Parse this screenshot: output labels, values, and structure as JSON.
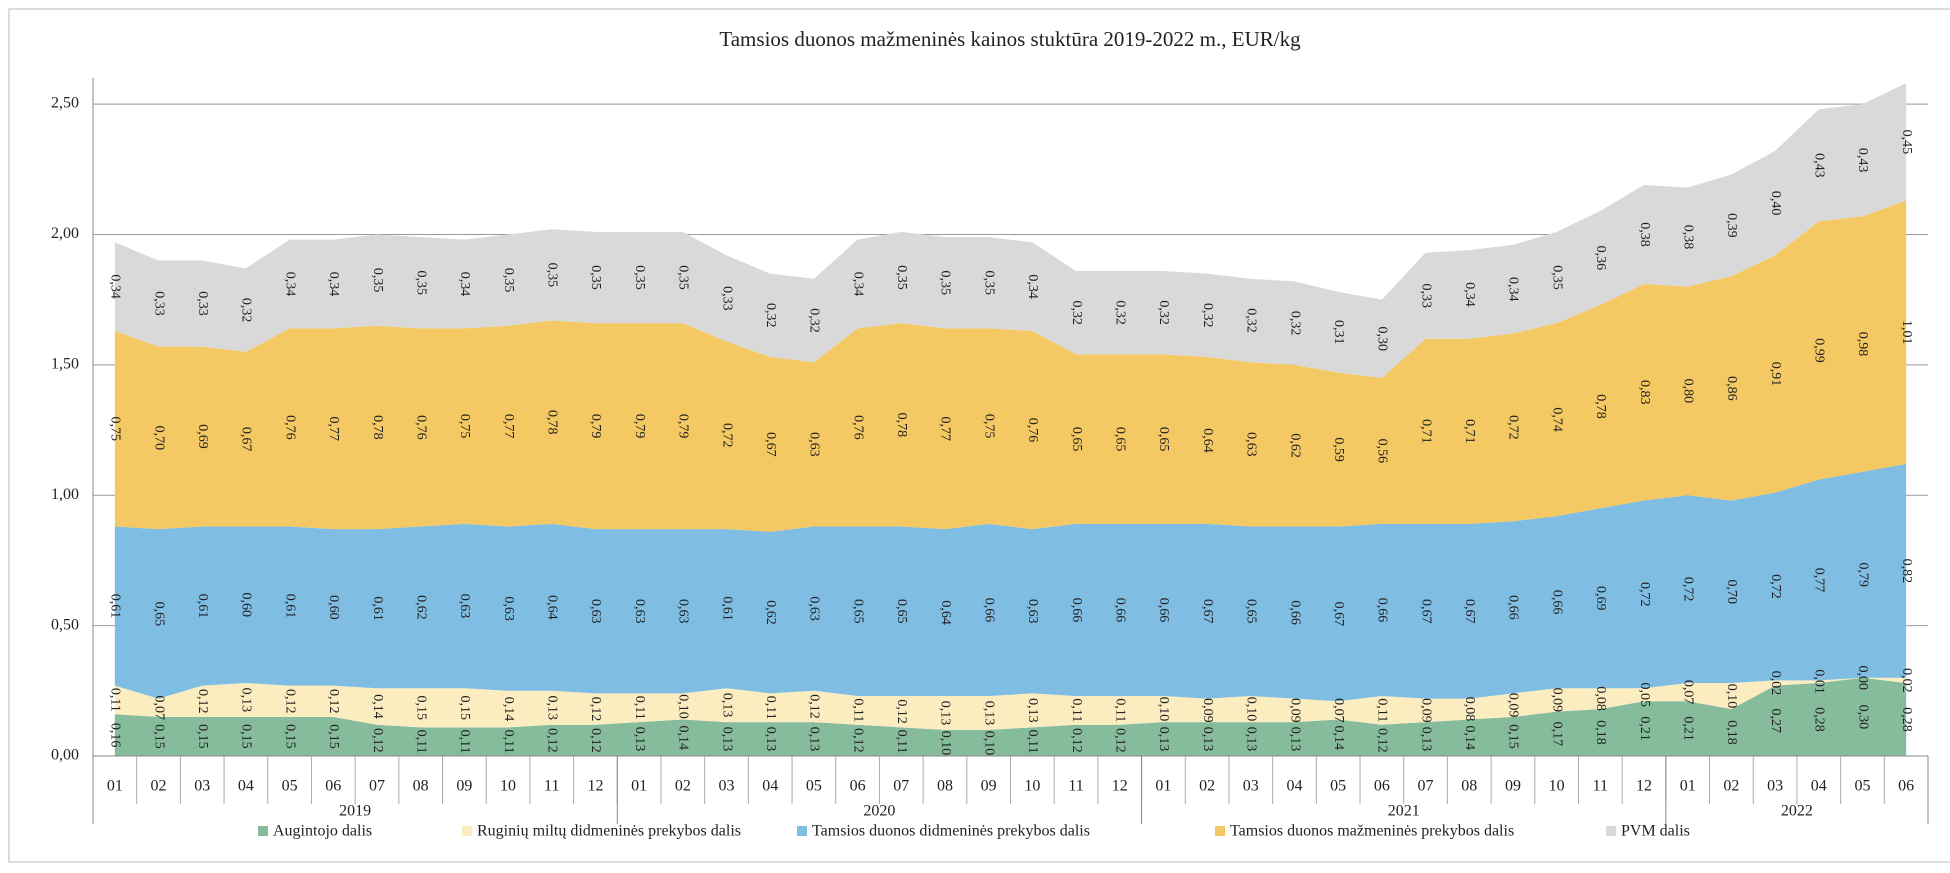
{
  "chart_data": {
    "type": "stacked_area",
    "title": "Tamsios duonos mažmeninės  kainos stuktūra  2019-2022 m., EUR/kg",
    "categories": [
      "01",
      "02",
      "03",
      "04",
      "05",
      "06",
      "07",
      "08",
      "09",
      "10",
      "11",
      "12",
      "01",
      "02",
      "03",
      "04",
      "05",
      "06",
      "07",
      "08",
      "09",
      "10",
      "11",
      "12",
      "01",
      "02",
      "03",
      "04",
      "05",
      "06",
      "07",
      "08",
      "09",
      "10",
      "11",
      "12",
      "01",
      "02",
      "03",
      "04",
      "05",
      "06"
    ],
    "x_groups": [
      {
        "label": "2019",
        "count": 12
      },
      {
        "label": "2020",
        "count": 12
      },
      {
        "label": "2021",
        "count": 12
      },
      {
        "label": "2022",
        "count": 6
      }
    ],
    "ylim": [
      0,
      2.6
    ],
    "yticks": [
      {
        "value": 0,
        "label": "0,00"
      },
      {
        "value": 0.5,
        "label": "0,50"
      },
      {
        "value": 1,
        "label": "1,00"
      },
      {
        "value": 1.5,
        "label": "1,50"
      },
      {
        "value": 2,
        "label": "2,00"
      },
      {
        "value": 2.5,
        "label": "2,50"
      }
    ],
    "grid": true,
    "legend": "bottom",
    "series": [
      {
        "name": "Augintojo dalis",
        "color": "#86bc9c",
        "values": [
          0.16,
          0.15,
          0.15,
          0.15,
          0.15,
          0.15,
          0.12,
          0.11,
          0.11,
          0.11,
          0.12,
          0.12,
          0.13,
          0.14,
          0.13,
          0.13,
          0.13,
          0.12,
          0.11,
          0.1,
          0.1,
          0.11,
          0.12,
          0.12,
          0.13,
          0.13,
          0.13,
          0.13,
          0.14,
          0.12,
          0.13,
          0.14,
          0.15,
          0.17,
          0.18,
          0.21,
          0.21,
          0.18,
          0.27,
          0.28,
          0.3,
          0.28
        ],
        "value_labels": [
          "0,16",
          "0,15",
          "0,15",
          "0,15",
          "0,15",
          "0,15",
          "0,12",
          "0,11",
          "0,11",
          "0,11",
          "0,12",
          "0,12",
          "0,13",
          "0,14",
          "0,13",
          "0,13",
          "0,13",
          "0,12",
          "0,11",
          "0,10",
          "0,10",
          "0,11",
          "0,12",
          "0,12",
          "0,13",
          "0,13",
          "0,13",
          "0,13",
          "0,14",
          "0,12",
          "0,13",
          "0,14",
          "0,15",
          "0,17",
          "0,18",
          "0,21",
          "0,21",
          "0,18",
          "0,27",
          "0,28",
          "0,30",
          "0,28"
        ]
      },
      {
        "name": "Ruginių miltų didmeninės  prekybos dalis",
        "color": "#fbedc0",
        "values": [
          0.11,
          0.07,
          0.12,
          0.13,
          0.12,
          0.12,
          0.14,
          0.15,
          0.15,
          0.14,
          0.13,
          0.12,
          0.11,
          0.1,
          0.13,
          0.11,
          0.12,
          0.11,
          0.12,
          0.13,
          0.13,
          0.13,
          0.11,
          0.11,
          0.1,
          0.09,
          0.1,
          0.09,
          0.07,
          0.11,
          0.09,
          0.08,
          0.09,
          0.09,
          0.08,
          0.05,
          0.07,
          0.1,
          0.02,
          0.01,
          0.0,
          0.02
        ],
        "value_labels": [
          "0,11",
          "0,07",
          "0,12",
          "0,13",
          "0,12",
          "0,12",
          "0,14",
          "0,15",
          "0,15",
          "0,14",
          "0,13",
          "0,12",
          "0,11",
          "0,10",
          "0,13",
          "0,11",
          "0,12",
          "0,11",
          "0,12",
          "0,13",
          "0,13",
          "0,13",
          "0,11",
          "0,11",
          "0,10",
          "0,09",
          "0,10",
          "0,09",
          "0,07",
          "0,11",
          "0,09",
          "0,08",
          "0,09",
          "0,09",
          "0,08",
          "0,05",
          "0,07",
          "0,10",
          "0,02",
          "0,01",
          "0,00",
          "0,02"
        ]
      },
      {
        "name": "Tamsios duonos didmeninės prekybos dalis",
        "color": "#7fbde3",
        "values": [
          0.61,
          0.65,
          0.61,
          0.6,
          0.61,
          0.6,
          0.61,
          0.62,
          0.63,
          0.63,
          0.64,
          0.63,
          0.63,
          0.63,
          0.61,
          0.62,
          0.63,
          0.65,
          0.65,
          0.64,
          0.66,
          0.63,
          0.66,
          0.66,
          0.66,
          0.67,
          0.65,
          0.66,
          0.67,
          0.66,
          0.67,
          0.67,
          0.66,
          0.66,
          0.69,
          0.72,
          0.72,
          0.7,
          0.72,
          0.77,
          0.79,
          0.82
        ],
        "value_labels": [
          "0,61",
          "0,65",
          "0,61",
          "0,60",
          "0,61",
          "0,60",
          "0,61",
          "0,62",
          "0,63",
          "0,63",
          "0,64",
          "0,63",
          "0,63",
          "0,63",
          "0,61",
          "0,62",
          "0,63",
          "0,65",
          "0,65",
          "0,64",
          "0,66",
          "0,63",
          "0,66",
          "0,66",
          "0,66",
          "0,67",
          "0,65",
          "0,66",
          "0,67",
          "0,66",
          "0,67",
          "0,67",
          "0,66",
          "0,66",
          "0,69",
          "0,72",
          "0,72",
          "0,70",
          "0,72",
          "0,77",
          "0,79",
          "0,82"
        ]
      },
      {
        "name": "Tamsios duonos mažmeninės prekybos dalis",
        "color": "#f4c862",
        "values": [
          0.75,
          0.7,
          0.69,
          0.67,
          0.76,
          0.77,
          0.78,
          0.76,
          0.75,
          0.77,
          0.78,
          0.79,
          0.79,
          0.79,
          0.72,
          0.67,
          0.63,
          0.76,
          0.78,
          0.77,
          0.75,
          0.76,
          0.65,
          0.65,
          0.65,
          0.64,
          0.63,
          0.62,
          0.59,
          0.56,
          0.71,
          0.71,
          0.72,
          0.74,
          0.78,
          0.83,
          0.8,
          0.86,
          0.91,
          0.99,
          0.98,
          1.01
        ],
        "value_labels": [
          "0,75",
          "0,70",
          "0,69",
          "0,67",
          "0,76",
          "0,77",
          "0,78",
          "0,76",
          "0,75",
          "0,77",
          "0,78",
          "0,79",
          "0,79",
          "0,79",
          "0,72",
          "0,67",
          "0,63",
          "0,76",
          "0,78",
          "0,77",
          "0,75",
          "0,76",
          "0,65",
          "0,65",
          "0,65",
          "0,64",
          "0,63",
          "0,62",
          "0,59",
          "0,56",
          "0,71",
          "0,71",
          "0,72",
          "0,74",
          "0,78",
          "0,83",
          "0,80",
          "0,86",
          "0,91",
          "0,99",
          "0,98",
          "1,01"
        ]
      },
      {
        "name": "PVM dalis",
        "color": "#d9d9d9",
        "values": [
          0.34,
          0.33,
          0.33,
          0.32,
          0.34,
          0.34,
          0.35,
          0.35,
          0.34,
          0.35,
          0.35,
          0.35,
          0.35,
          0.35,
          0.33,
          0.32,
          0.32,
          0.34,
          0.35,
          0.35,
          0.35,
          0.34,
          0.32,
          0.32,
          0.32,
          0.32,
          0.32,
          0.32,
          0.31,
          0.3,
          0.33,
          0.34,
          0.34,
          0.35,
          0.36,
          0.38,
          0.38,
          0.39,
          0.4,
          0.43,
          0.43,
          0.45
        ],
        "value_labels": [
          "0,34",
          "0,33",
          "0,33",
          "0,32",
          "0,34",
          "0,34",
          "0,35",
          "0,35",
          "0,34",
          "0,35",
          "0,35",
          "0,35",
          "0,35",
          "0,35",
          "0,33",
          "0,32",
          "0,32",
          "0,34",
          "0,35",
          "0,35",
          "0,35",
          "0,34",
          "0,32",
          "0,32",
          "0,32",
          "0,32",
          "0,32",
          "0,32",
          "0,31",
          "0,30",
          "0,33",
          "0,34",
          "0,34",
          "0,35",
          "0,36",
          "0,38",
          "0,38",
          "0,39",
          "0,40",
          "0,43",
          "0,43",
          "0,45"
        ]
      }
    ]
  }
}
